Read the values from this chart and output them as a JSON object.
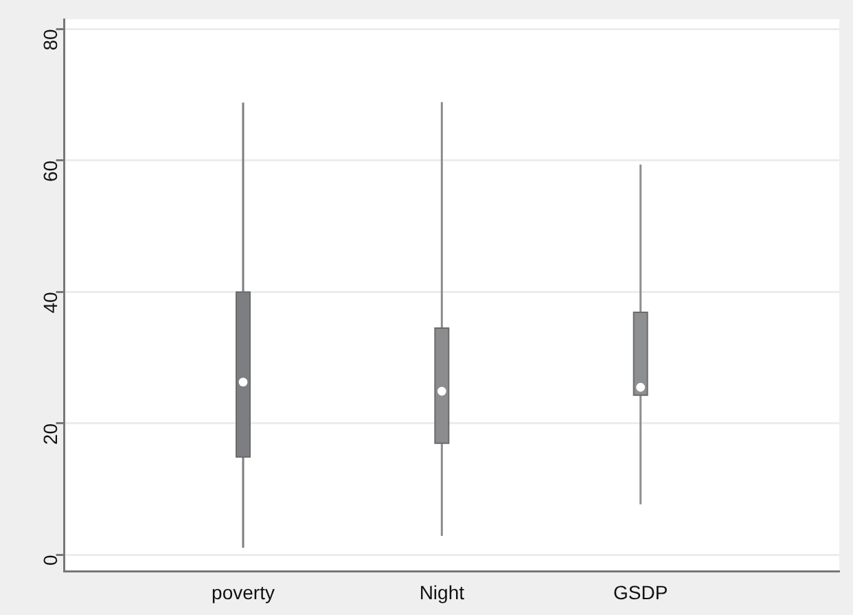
{
  "chart_data": {
    "type": "box",
    "categories": [
      "poverty",
      "Night",
      "GSDP"
    ],
    "boxes": [
      {
        "low": 1.1,
        "q1": 14.9,
        "median": 26.3,
        "q3": 40,
        "high": 68.8
      },
      {
        "low": 2.9,
        "q1": 17,
        "median": 24.9,
        "q3": 34.5,
        "high": 68.9
      },
      {
        "low": 7.7,
        "q1": 24.3,
        "median": 25.5,
        "q3": 36.9,
        "high": 59.4
      }
    ],
    "colors": [
      "#7d7e82",
      "#8c8c8e",
      "#8e8f91"
    ],
    "ylim": [
      -2.5,
      81.5
    ],
    "yticks": [
      0,
      20,
      40,
      60,
      80
    ],
    "grid": "y"
  }
}
